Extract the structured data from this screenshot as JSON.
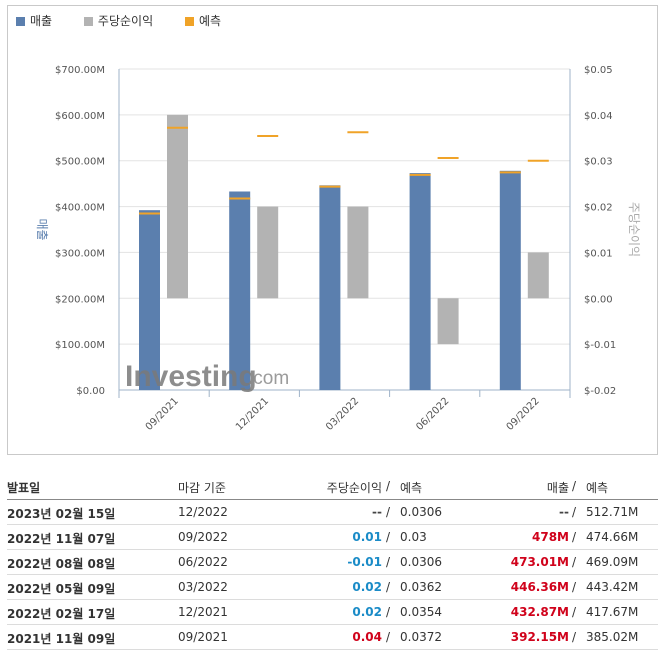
{
  "legend": {
    "revenue": "매출",
    "eps": "주당순이익",
    "forecast": "예측"
  },
  "colors": {
    "revenue": "#5b7fae",
    "eps": "#b3b3b3",
    "forecast": "#f0a328",
    "revenue_title": "#5b7fae",
    "eps_title": "#aaaaaa"
  },
  "chart_data": {
    "type": "bar",
    "categories": [
      "09/2021",
      "12/2021",
      "03/2022",
      "06/2022",
      "09/2022"
    ],
    "series": [
      {
        "name": "매출",
        "axis": "left",
        "values": [
          392.15,
          432.87,
          446.36,
          473.01,
          478
        ],
        "forecast": [
          385.02,
          417.67,
          443.42,
          469.09,
          474.66
        ]
      },
      {
        "name": "주당순이익",
        "axis": "right",
        "values": [
          0.04,
          0.02,
          0.02,
          -0.01,
          0.01
        ],
        "forecast": [
          0.0372,
          0.0354,
          0.0362,
          0.0306,
          0.03
        ]
      }
    ],
    "left_axis": {
      "title": "매출",
      "ticks": [
        "$0.00",
        "$100.00M",
        "$200.00M",
        "$300.00M",
        "$400.00M",
        "$500.00M",
        "$600.00M",
        "$700.00M"
      ],
      "range": [
        0,
        700
      ]
    },
    "right_axis": {
      "title": "주당순이익",
      "ticks": [
        "$-0.02",
        "$-0.01",
        "$0.00",
        "$0.01",
        "$0.02",
        "$0.03",
        "$0.04",
        "$0.05"
      ],
      "range": [
        -0.02,
        0.05
      ]
    },
    "watermark": {
      "brand": "Investing",
      "suffix": ".com"
    }
  },
  "table": {
    "headers": {
      "date": "발표일",
      "period": "마감 기준",
      "eps": "주당순이익",
      "eps_sep": "/",
      "eps_forecast": "예측",
      "revenue": "매출",
      "rev_sep": "/",
      "rev_forecast": "예측"
    },
    "rows": [
      {
        "date": "2023년 02월 15일",
        "period": "12/2022",
        "eps": "--",
        "eps_sep": "/",
        "eps_forecast": "0.0306",
        "revenue": "--",
        "rev_sep": "/",
        "rev_forecast": "512.71M",
        "eps_class": "dim",
        "rev_class": "dim"
      },
      {
        "date": "2022년 11월 07일",
        "period": "09/2022",
        "eps": "0.01",
        "eps_sep": "/",
        "eps_forecast": "0.03",
        "revenue": "478M",
        "rev_sep": "/",
        "rev_forecast": "474.66M",
        "eps_class": "pos",
        "rev_class": "red"
      },
      {
        "date": "2022년 08월 08일",
        "period": "06/2022",
        "eps": "-0.01",
        "eps_sep": "/",
        "eps_forecast": "0.0306",
        "revenue": "473.01M",
        "rev_sep": "/",
        "rev_forecast": "469.09M",
        "eps_class": "neg",
        "rev_class": "red"
      },
      {
        "date": "2022년 05월 09일",
        "period": "03/2022",
        "eps": "0.02",
        "eps_sep": "/",
        "eps_forecast": "0.0362",
        "revenue": "446.36M",
        "rev_sep": "/",
        "rev_forecast": "443.42M",
        "eps_class": "pos",
        "rev_class": "red"
      },
      {
        "date": "2022년 02월 17일",
        "period": "12/2021",
        "eps": "0.02",
        "eps_sep": "/",
        "eps_forecast": "0.0354",
        "revenue": "432.87M",
        "rev_sep": "/",
        "rev_forecast": "417.67M",
        "eps_class": "pos",
        "rev_class": "red"
      },
      {
        "date": "2021년 11월 09일",
        "period": "09/2021",
        "eps": "0.04",
        "eps_sep": "/",
        "eps_forecast": "0.0372",
        "revenue": "392.15M",
        "rev_sep": "/",
        "rev_forecast": "385.02M",
        "eps_class": "red",
        "rev_class": "red"
      }
    ]
  }
}
